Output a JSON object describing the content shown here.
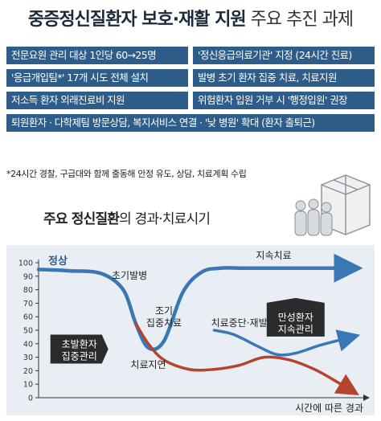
{
  "title": {
    "strong": "중증정신질환자 보호·재활 지원",
    "light": "주요 추진 과제"
  },
  "tasks": [
    {
      "text": "전문요원 관리 대상 1인당 60→25명"
    },
    {
      "text": "'정신응급의료기관' 지정 (24시간 진료)"
    },
    {
      "text": "'응급개입팀*' 17개 시도 전체 설치"
    },
    {
      "text": "발병 초기 환자 집중 치료, 치료지원"
    },
    {
      "text": "저소득 환자 외래진료비 지원"
    },
    {
      "text": "위험환자 입원 거부 시 '행정입원' 권장"
    },
    {
      "text": "퇴원환자 · 다학제팀 방문상담, 복지서비스 연결 · '낮 병원' 확대 (환자 출퇴근)"
    }
  ],
  "footnote": "*24시간 경찰, 구급대와 함께 출동해 안정 유도, 상담, 치료계획 수립",
  "colors": {
    "box": "#2e5d8a",
    "panel": "#e9eef4",
    "blue": "#3a78b5",
    "red": "#b5432e",
    "dark": "#2b2b2b"
  },
  "chart_data": {
    "type": "line",
    "title_strong": "주요 정신질환",
    "title_rest": "의 경과·치료시기",
    "xlabel": "시간에 따른 경과",
    "ylim": [
      0,
      100
    ],
    "yticks": [
      0,
      10,
      20,
      30,
      40,
      50,
      60,
      70,
      80,
      90,
      100
    ],
    "normal_label": "정상",
    "series": [
      {
        "name": "치료",
        "color": "#3a78b5",
        "x": [
          0,
          10,
          20,
          27,
          31,
          35,
          40,
          46,
          52,
          58,
          65,
          75,
          90,
          100
        ],
        "y": [
          95,
          94,
          92,
          80,
          55,
          37,
          42,
          78,
          93,
          96,
          96,
          96,
          96,
          96
        ]
      },
      {
        "name": "치료지연",
        "color": "#b5432e",
        "x": [
          31,
          35,
          40,
          48,
          56,
          64,
          72,
          80,
          88,
          95,
          100
        ],
        "y": [
          55,
          40,
          28,
          21,
          21,
          24,
          30,
          28,
          21,
          12,
          5
        ]
      },
      {
        "name": "치료중단·재발",
        "color": "#3a78b5",
        "x": [
          56,
          62,
          70,
          76,
          82,
          90,
          100
        ],
        "y": [
          50,
          47,
          38,
          32,
          33,
          39,
          45
        ]
      }
    ],
    "annotations": [
      {
        "text": "초기발병"
      },
      {
        "text": "조기"
      },
      {
        "text": "집중치료"
      },
      {
        "text": "지속치료"
      },
      {
        "text": "치료중단·재발"
      },
      {
        "text": "치료지연"
      }
    ],
    "callouts": [
      {
        "line1": "초발환자",
        "line2": "집중관리"
      },
      {
        "line1": "만성환자",
        "line2": "지속관리"
      }
    ]
  }
}
